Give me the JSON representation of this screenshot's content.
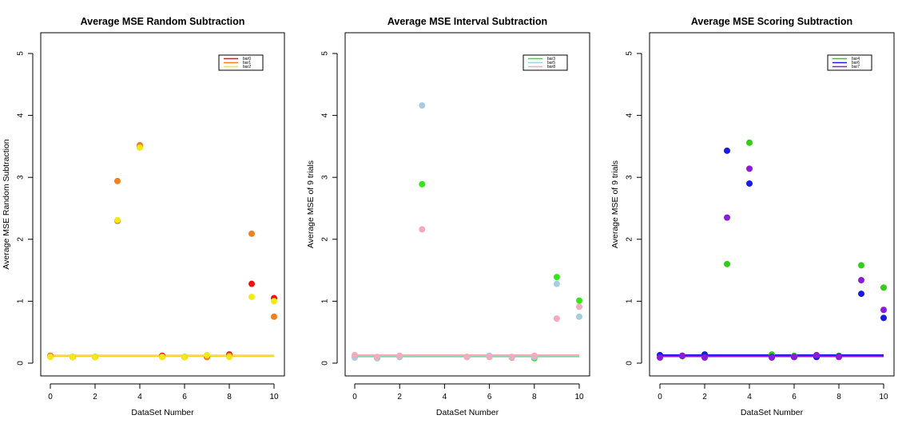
{
  "chart_data": [
    {
      "type": "scatter",
      "title": "Average MSE Random Subtraction",
      "xlabel": "DataSet Number",
      "ylabel": "Average MSE Random Subtraction",
      "xlim": [
        0,
        10
      ],
      "ylim": [
        0,
        5
      ],
      "xticks": [
        "0",
        "2",
        "4",
        "6",
        "8",
        "10"
      ],
      "yticks": [
        "0",
        "1",
        "2",
        "3",
        "4",
        "5"
      ],
      "legend_position": "top-right",
      "series": [
        {
          "name": "bar0",
          "color": "#ee1111",
          "x": [
            0,
            1,
            2,
            3,
            4,
            5,
            6,
            7,
            8,
            9,
            10
          ],
          "y": [
            0.12,
            0.1,
            0.1,
            2.3,
            3.5,
            0.12,
            0.1,
            0.1,
            0.14,
            1.28,
            1.05
          ],
          "baseline": 0.12
        },
        {
          "name": "bar1",
          "color": "#f0821e",
          "x": [
            0,
            1,
            2,
            3,
            4,
            5,
            6,
            7,
            8,
            9,
            10
          ],
          "y": [
            0.12,
            0.1,
            0.1,
            2.94,
            3.52,
            0.1,
            0.1,
            0.1,
            0.12,
            2.09,
            0.75
          ],
          "baseline": 0.12
        },
        {
          "name": "bar2",
          "color": "#f2ea16",
          "x": [
            0,
            1,
            2,
            3,
            4,
            5,
            6,
            7,
            8,
            9,
            10
          ],
          "y": [
            0.1,
            0.1,
            0.1,
            2.31,
            3.48,
            0.1,
            0.1,
            0.13,
            0.1,
            1.07,
            1.0
          ],
          "baseline": 0.12
        }
      ]
    },
    {
      "type": "scatter",
      "title": "Average MSE Interval Subtraction",
      "xlabel": "DataSet Number",
      "ylabel": "Average MSE of 9 trials",
      "xlim": [
        0,
        10
      ],
      "ylim": [
        0,
        5
      ],
      "xticks": [
        "0",
        "2",
        "4",
        "6",
        "8",
        "10"
      ],
      "yticks": [
        "0",
        "1",
        "2",
        "3",
        "4",
        "5"
      ],
      "legend_position": "top-right",
      "series": [
        {
          "name": "bar3",
          "color": "#33e61a",
          "x": [
            0,
            1,
            2,
            3,
            5,
            6,
            7,
            8,
            9,
            10
          ],
          "y": [
            0.1,
            0.08,
            0.1,
            2.89,
            0.1,
            0.1,
            0.09,
            0.08,
            1.39,
            1.01
          ],
          "baseline": 0.11
        },
        {
          "name": "bar5",
          "color": "#a6cce0",
          "x": [
            0,
            1,
            2,
            3,
            5,
            6,
            7,
            8,
            9,
            10
          ],
          "y": [
            0.09,
            0.08,
            0.1,
            4.16,
            0.1,
            0.12,
            0.1,
            0.1,
            1.28,
            0.75
          ],
          "baseline": 0.12
        },
        {
          "name": "bar8",
          "color": "#f5aabd",
          "x": [
            0,
            1,
            2,
            3,
            5,
            6,
            7,
            8,
            9,
            10
          ],
          "y": [
            0.13,
            0.1,
            0.12,
            2.16,
            0.1,
            0.1,
            0.1,
            0.12,
            0.72,
            0.91
          ],
          "baseline": 0.13
        }
      ]
    },
    {
      "type": "scatter",
      "title": "Average MSE Scoring Subtraction",
      "xlabel": "DataSet Number",
      "ylabel": "Average MSE of 9 trials",
      "xlim": [
        0,
        10
      ],
      "ylim": [
        0,
        5
      ],
      "xticks": [
        "0",
        "2",
        "4",
        "6",
        "8",
        "10"
      ],
      "yticks": [
        "0",
        "1",
        "2",
        "3",
        "4",
        "5"
      ],
      "legend_position": "top-right",
      "series": [
        {
          "name": "bar4",
          "color": "#33cc1a",
          "x": [
            0,
            1,
            2,
            3,
            4,
            5,
            6,
            7,
            8,
            9,
            10
          ],
          "y": [
            0.12,
            0.11,
            0.12,
            1.6,
            3.56,
            0.14,
            0.12,
            0.1,
            0.12,
            1.58,
            1.22
          ],
          "baseline": 0.12
        },
        {
          "name": "bar6",
          "color": "#1a1ae6",
          "x": [
            0,
            1,
            2,
            3,
            4,
            5,
            6,
            7,
            8,
            9,
            10
          ],
          "y": [
            0.13,
            0.12,
            0.14,
            3.43,
            2.9,
            0.1,
            0.1,
            0.1,
            0.11,
            1.12,
            0.73
          ],
          "baseline": 0.13
        },
        {
          "name": "bar7",
          "color": "#8c1ad9",
          "x": [
            0,
            1,
            2,
            3,
            4,
            5,
            6,
            7,
            8,
            9,
            10
          ],
          "y": [
            0.09,
            0.12,
            0.09,
            2.35,
            3.14,
            0.09,
            0.1,
            0.13,
            0.1,
            1.34,
            0.86
          ],
          "baseline": 0.11
        }
      ]
    }
  ]
}
